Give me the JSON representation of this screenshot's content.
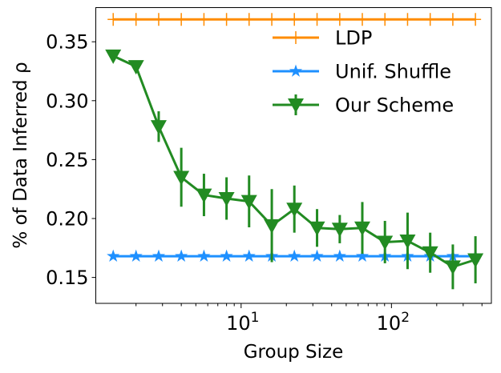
{
  "chart_data": {
    "type": "line",
    "title": "",
    "xlabel": "Group Size",
    "ylabel": "% of Data Inferred ρ",
    "xscale": "log",
    "xlim": [
      1.08,
      462
    ],
    "ylim": [
      0.128,
      0.379
    ],
    "yticks": [
      0.15,
      0.2,
      0.25,
      0.3,
      0.35
    ],
    "ytick_labels": [
      "0.15",
      "0.20",
      "0.25",
      "0.30",
      "0.35"
    ],
    "xticks": [
      10,
      100
    ],
    "xtick_labels": [
      {
        "base": "10",
        "exp": "1"
      },
      {
        "base": "10",
        "exp": "2"
      }
    ],
    "grid": false,
    "legend_position": "top-right",
    "x": [
      1.41,
      2,
      2.83,
      4,
      5.66,
      8,
      11.3,
      16,
      22.6,
      32,
      45.3,
      64,
      90.5,
      128,
      181,
      256,
      362
    ],
    "series": [
      {
        "name": "LDP",
        "color": "#ff8c00",
        "marker": "plus",
        "values": [
          0.369,
          0.369,
          0.369,
          0.369,
          0.369,
          0.369,
          0.369,
          0.369,
          0.369,
          0.369,
          0.369,
          0.369,
          0.369,
          0.369,
          0.369,
          0.369,
          0.369
        ]
      },
      {
        "name": "Unif. Shuffle",
        "color": "#1e90ff",
        "marker": "star",
        "values": [
          0.168,
          0.168,
          0.168,
          0.168,
          0.168,
          0.168,
          0.168,
          0.168,
          0.168,
          0.168,
          0.168,
          0.168,
          0.168,
          0.168,
          0.168,
          0.168,
          0.168
        ]
      },
      {
        "name": "Our Scheme",
        "color": "#228b22",
        "marker": "triangle-down",
        "values": [
          0.338,
          0.329,
          0.278,
          0.235,
          0.22,
          0.217,
          0.2145,
          0.194,
          0.208,
          0.192,
          0.191,
          0.192,
          0.18,
          0.181,
          0.171,
          0.159,
          0.165
        ],
        "errors": [
          0.002,
          0.005,
          0.013,
          0.025,
          0.018,
          0.018,
          0.022,
          0.031,
          0.02,
          0.016,
          0.012,
          0.022,
          0.018,
          0.024,
          0.017,
          0.019,
          0.02
        ]
      }
    ]
  }
}
